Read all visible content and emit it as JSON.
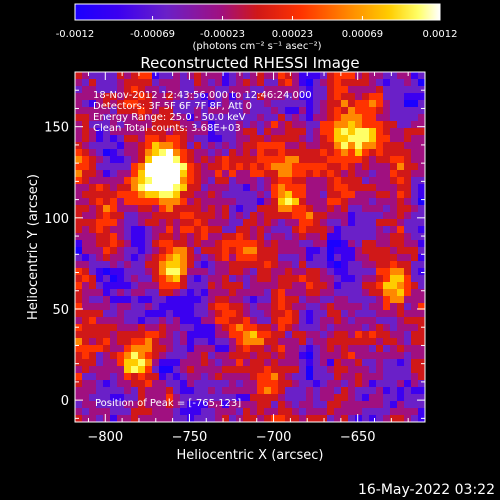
{
  "title": "Reconstructed RHESSI Image",
  "colorbar": {
    "min": -0.0012,
    "max": 0.0012,
    "tick_labels": [
      "-0.0012",
      "-0.00069",
      "-0.00023",
      "0.00023",
      "0.00069",
      "0.0012"
    ],
    "tick_values": [
      -0.0012,
      -0.00069,
      -0.00023,
      0.00023,
      0.00069,
      0.0012
    ],
    "unit_label": "(photons cm⁻² s⁻¹ asec⁻²)",
    "colormap": [
      "#1a00ff",
      "#3b00f0",
      "#6a20c8",
      "#a01080",
      "#d01818",
      "#ff3300",
      "#ff8800",
      "#ffcc00",
      "#ffff66",
      "#ffffff"
    ]
  },
  "overlay": {
    "lines": [
      "18-Nov-2012 12:43:56.000 to 12:46:24.000",
      "Detectors: 3F 5F 6F 7F 8F, Att 0",
      "Energy Range: 25.0 - 50.0 keV",
      "Clean     Total counts: 3.68E+03"
    ],
    "peak_label": "Position of Peak = [-765,123]"
  },
  "axes": {
    "xlabel": "Heliocentric X (arcsec)",
    "ylabel": "Heliocentric Y (arcsec)",
    "x_ticks": [
      -800,
      -750,
      -700,
      -650
    ],
    "x_tick_labels": [
      "−800",
      "−750",
      "−700",
      "−650"
    ],
    "y_ticks": [
      0,
      50,
      100,
      150
    ],
    "y_tick_labels": [
      "0",
      "50",
      "100",
      "150"
    ],
    "xlim": [
      -818,
      -610
    ],
    "ylim": [
      -12,
      180
    ]
  },
  "chart_data": {
    "type": "heatmap",
    "title": "Reconstructed RHESSI Image",
    "xlabel": "Heliocentric X (arcsec)",
    "ylabel": "Heliocentric Y (arcsec)",
    "xlim": [
      -818,
      -610
    ],
    "ylim": [
      -12,
      180
    ],
    "value_range": [
      -0.0012,
      0.0012
    ],
    "peak": [
      -765,
      123
    ],
    "grid": false
  },
  "footer": {
    "timestamp": "16-May-2022 03:22"
  }
}
